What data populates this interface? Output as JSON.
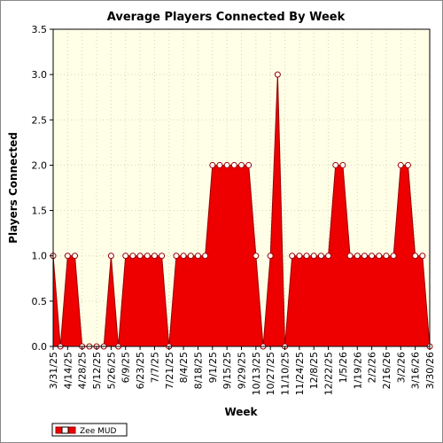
{
  "chart_data": {
    "type": "area",
    "title": "Average Players Connected By Week",
    "xlabel": "Week",
    "ylabel": "Players Connected",
    "ylim": [
      0,
      3.5
    ],
    "yticks": [
      "0.0",
      "0.5",
      "1.0",
      "1.5",
      "2.0",
      "2.5",
      "3.0",
      "3.5"
    ],
    "xtick_labels": [
      "3/31/25",
      "4/14/25",
      "4/28/25",
      "5/12/25",
      "5/26/25",
      "6/9/25",
      "6/23/25",
      "7/7/25",
      "7/21/25",
      "8/4/25",
      "8/18/25",
      "9/1/25",
      "9/15/25",
      "9/29/25",
      "10/13/25",
      "10/27/25",
      "11/10/25",
      "11/24/25",
      "12/8/25",
      "12/22/25",
      "1/5/26",
      "1/19/26",
      "2/2/26",
      "2/16/26",
      "3/2/26",
      "3/16/26",
      "3/30/26"
    ],
    "x": [
      "3/31/25",
      "4/7/25",
      "4/14/25",
      "4/21/25",
      "4/28/25",
      "5/5/25",
      "5/12/25",
      "5/19/25",
      "5/26/25",
      "6/2/25",
      "6/9/25",
      "6/16/25",
      "6/23/25",
      "6/30/25",
      "7/7/25",
      "7/14/25",
      "7/21/25",
      "7/28/25",
      "8/4/25",
      "8/11/25",
      "8/18/25",
      "8/25/25",
      "9/1/25",
      "9/8/25",
      "9/15/25",
      "9/22/25",
      "9/29/25",
      "10/6/25",
      "10/13/25",
      "10/20/25",
      "10/27/25",
      "11/3/25",
      "11/10/25",
      "11/17/25",
      "11/24/25",
      "12/1/25",
      "12/8/25",
      "12/15/25",
      "12/22/25",
      "12/29/25",
      "1/5/26",
      "1/12/26",
      "1/19/26",
      "1/26/26",
      "2/2/26",
      "2/9/26",
      "2/16/26",
      "2/23/26",
      "3/2/26",
      "3/9/26",
      "3/16/26",
      "3/23/26",
      "3/30/26"
    ],
    "series": [
      {
        "name": "Zee MUD",
        "color": "#ee0000",
        "values": [
          1,
          0,
          1,
          1,
          0,
          0,
          0,
          0,
          1,
          0,
          1,
          1,
          1,
          1,
          1,
          1,
          0,
          1,
          1,
          1,
          1,
          1,
          2,
          2,
          2,
          2,
          2,
          2,
          1,
          0,
          1,
          3,
          0,
          1,
          1,
          1,
          1,
          1,
          1,
          2,
          2,
          1,
          1,
          1,
          1,
          1,
          1,
          1,
          2,
          2,
          1,
          1,
          0
        ]
      }
    ],
    "grid": true,
    "background": "#ffffe8",
    "legend_position": "bottom-left"
  }
}
